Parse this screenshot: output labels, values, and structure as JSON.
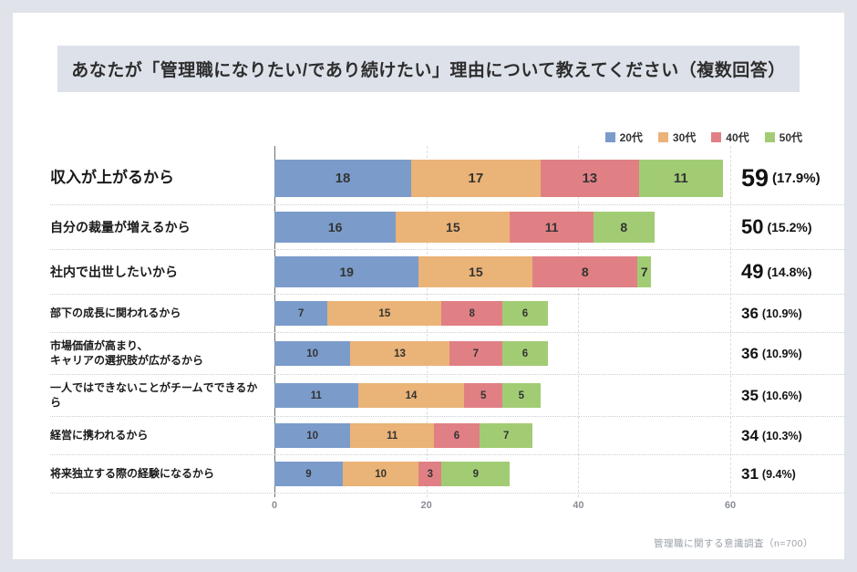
{
  "page": {
    "title": "あなたが「管理職になりたい/であり続けたい」理由について教えてください（複数回答）",
    "footer": "管理職に関する意識調査（n=700）"
  },
  "colors": {
    "outer_background": "#e0e3e9",
    "card_background": "#ffffff",
    "title_band_background": "#dde1e9",
    "series_20s": "#7b9cca",
    "series_30s": "#eab377",
    "series_40s": "#e08085",
    "series_50s": "#a2cc74"
  },
  "chart_data": {
    "type": "bar",
    "stacked": true,
    "orientation": "horizontal",
    "xlim": [
      0,
      60
    ],
    "x_ticks": [
      0,
      20,
      40,
      60
    ],
    "grid": "vertical-dashed",
    "legend_position": "top-right",
    "series_names": [
      "20代",
      "30代",
      "40代",
      "50代"
    ],
    "series_keys": [
      "20s",
      "30s",
      "40s",
      "50s"
    ],
    "series_colors": [
      "#7b9cca",
      "#eab377",
      "#e08085",
      "#a2cc74"
    ],
    "rows": [
      {
        "label": "収入が上がるから",
        "values": [
          18,
          17,
          13,
          11
        ],
        "total": 59,
        "percent": "17.9%",
        "tier": 1
      },
      {
        "label": "自分の裁量が増えるから",
        "values": [
          16,
          15,
          11,
          8
        ],
        "total": 50,
        "percent": "15.2%",
        "tier": 2
      },
      {
        "label": "社内で出世したいから",
        "values": [
          19,
          15,
          8,
          7
        ],
        "drawn": [
          19,
          15,
          13.8,
          1.8
        ],
        "total": 49,
        "percent": "14.8%",
        "tier": 2
      },
      {
        "label": "部下の成長に関われるから",
        "values": [
          7,
          15,
          8,
          6
        ],
        "total": 36,
        "percent": "10.9%",
        "tier": 3
      },
      {
        "label": "市場価値が高まり、\nキャリアの選択肢が広がるから",
        "values": [
          10,
          13,
          7,
          6
        ],
        "total": 36,
        "percent": "10.9%",
        "tier": 3
      },
      {
        "label": "一人ではできないことがチームでできるから",
        "values": [
          11,
          14,
          5,
          5
        ],
        "total": 35,
        "percent": "10.6%",
        "tier": 3
      },
      {
        "label": "経営に携われるから",
        "values": [
          10,
          11,
          6,
          7
        ],
        "total": 34,
        "percent": "10.3%",
        "tier": 3
      },
      {
        "label": "将来独立する際の経験になるから",
        "values": [
          9,
          10,
          3,
          9
        ],
        "total": 31,
        "percent": "9.4%",
        "tier": 3
      }
    ]
  }
}
